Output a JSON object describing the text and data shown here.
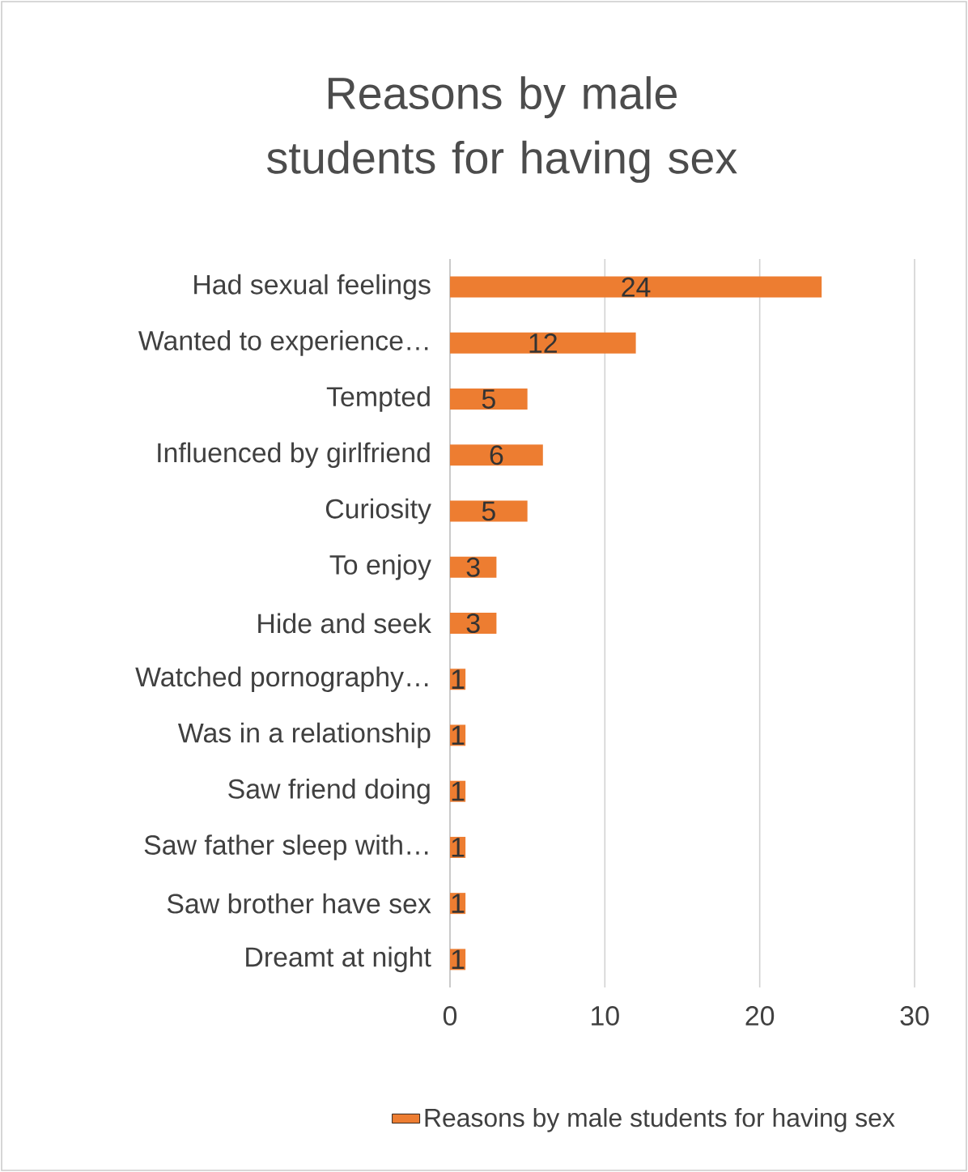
{
  "chart_data": {
    "type": "bar",
    "orientation": "horizontal",
    "title": "Reasons by male students for having sex",
    "categories": [
      "Had sexual feelings",
      "Wanted to experience…",
      "Tempted",
      "Influenced by girlfriend",
      "Curiosity",
      "To enjoy",
      "Hide and seek",
      "Watched pornography…",
      "Was in a relationship",
      "Saw friend doing",
      "Saw father sleep with…",
      "Saw brother have sex",
      "Dreamt at night"
    ],
    "series": [
      {
        "name": "Reasons by male students for having sex",
        "color": "#ed7d31",
        "values": [
          24,
          12,
          5,
          6,
          5,
          3,
          3,
          1,
          1,
          1,
          1,
          1,
          1
        ]
      }
    ],
    "xlim": [
      0,
      30
    ],
    "xticks": [
      0,
      10,
      20,
      30
    ],
    "grid": "x",
    "legend": "bottom",
    "data_labels": true
  }
}
